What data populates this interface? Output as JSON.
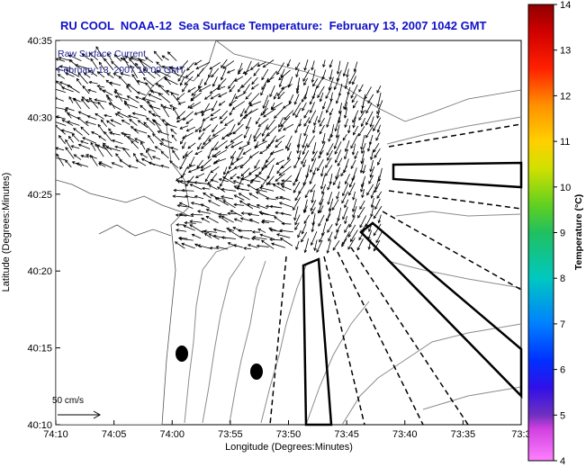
{
  "title": "RU COOL  NOAA-12  Sea Surface Temperature:  February 13, 2007 1042 GMT",
  "annotation": {
    "line1": "Raw Surface Current",
    "line2": "February 13, 2007 10:00 GMT"
  },
  "scale_label": "50 cm/s",
  "x_axis": {
    "label": "Longitude (Degrees:Minutes)",
    "ticks": [
      "74:10",
      "74:05",
      "74:00",
      "73:55",
      "73:50",
      "73:45",
      "73:40",
      "73:35",
      "73:3"
    ]
  },
  "y_axis": {
    "label": "Latitude (Degrees:Minutes)",
    "ticks": [
      "40:35",
      "40:30",
      "40:25",
      "40:20",
      "40:15",
      "40:10"
    ]
  },
  "colorbar": {
    "label": "Temperature (°C)",
    "ticks": [
      "14",
      "13",
      "12",
      "11",
      "10",
      "9",
      "8",
      "7",
      "6",
      "5",
      "4"
    ],
    "min": 4,
    "max": 14
  },
  "colors": {
    "title": "#1010c8",
    "annotation": "#1a1a8c",
    "arrows": "#000000",
    "contours": "#8c8c8c",
    "coast": "#444444"
  }
}
